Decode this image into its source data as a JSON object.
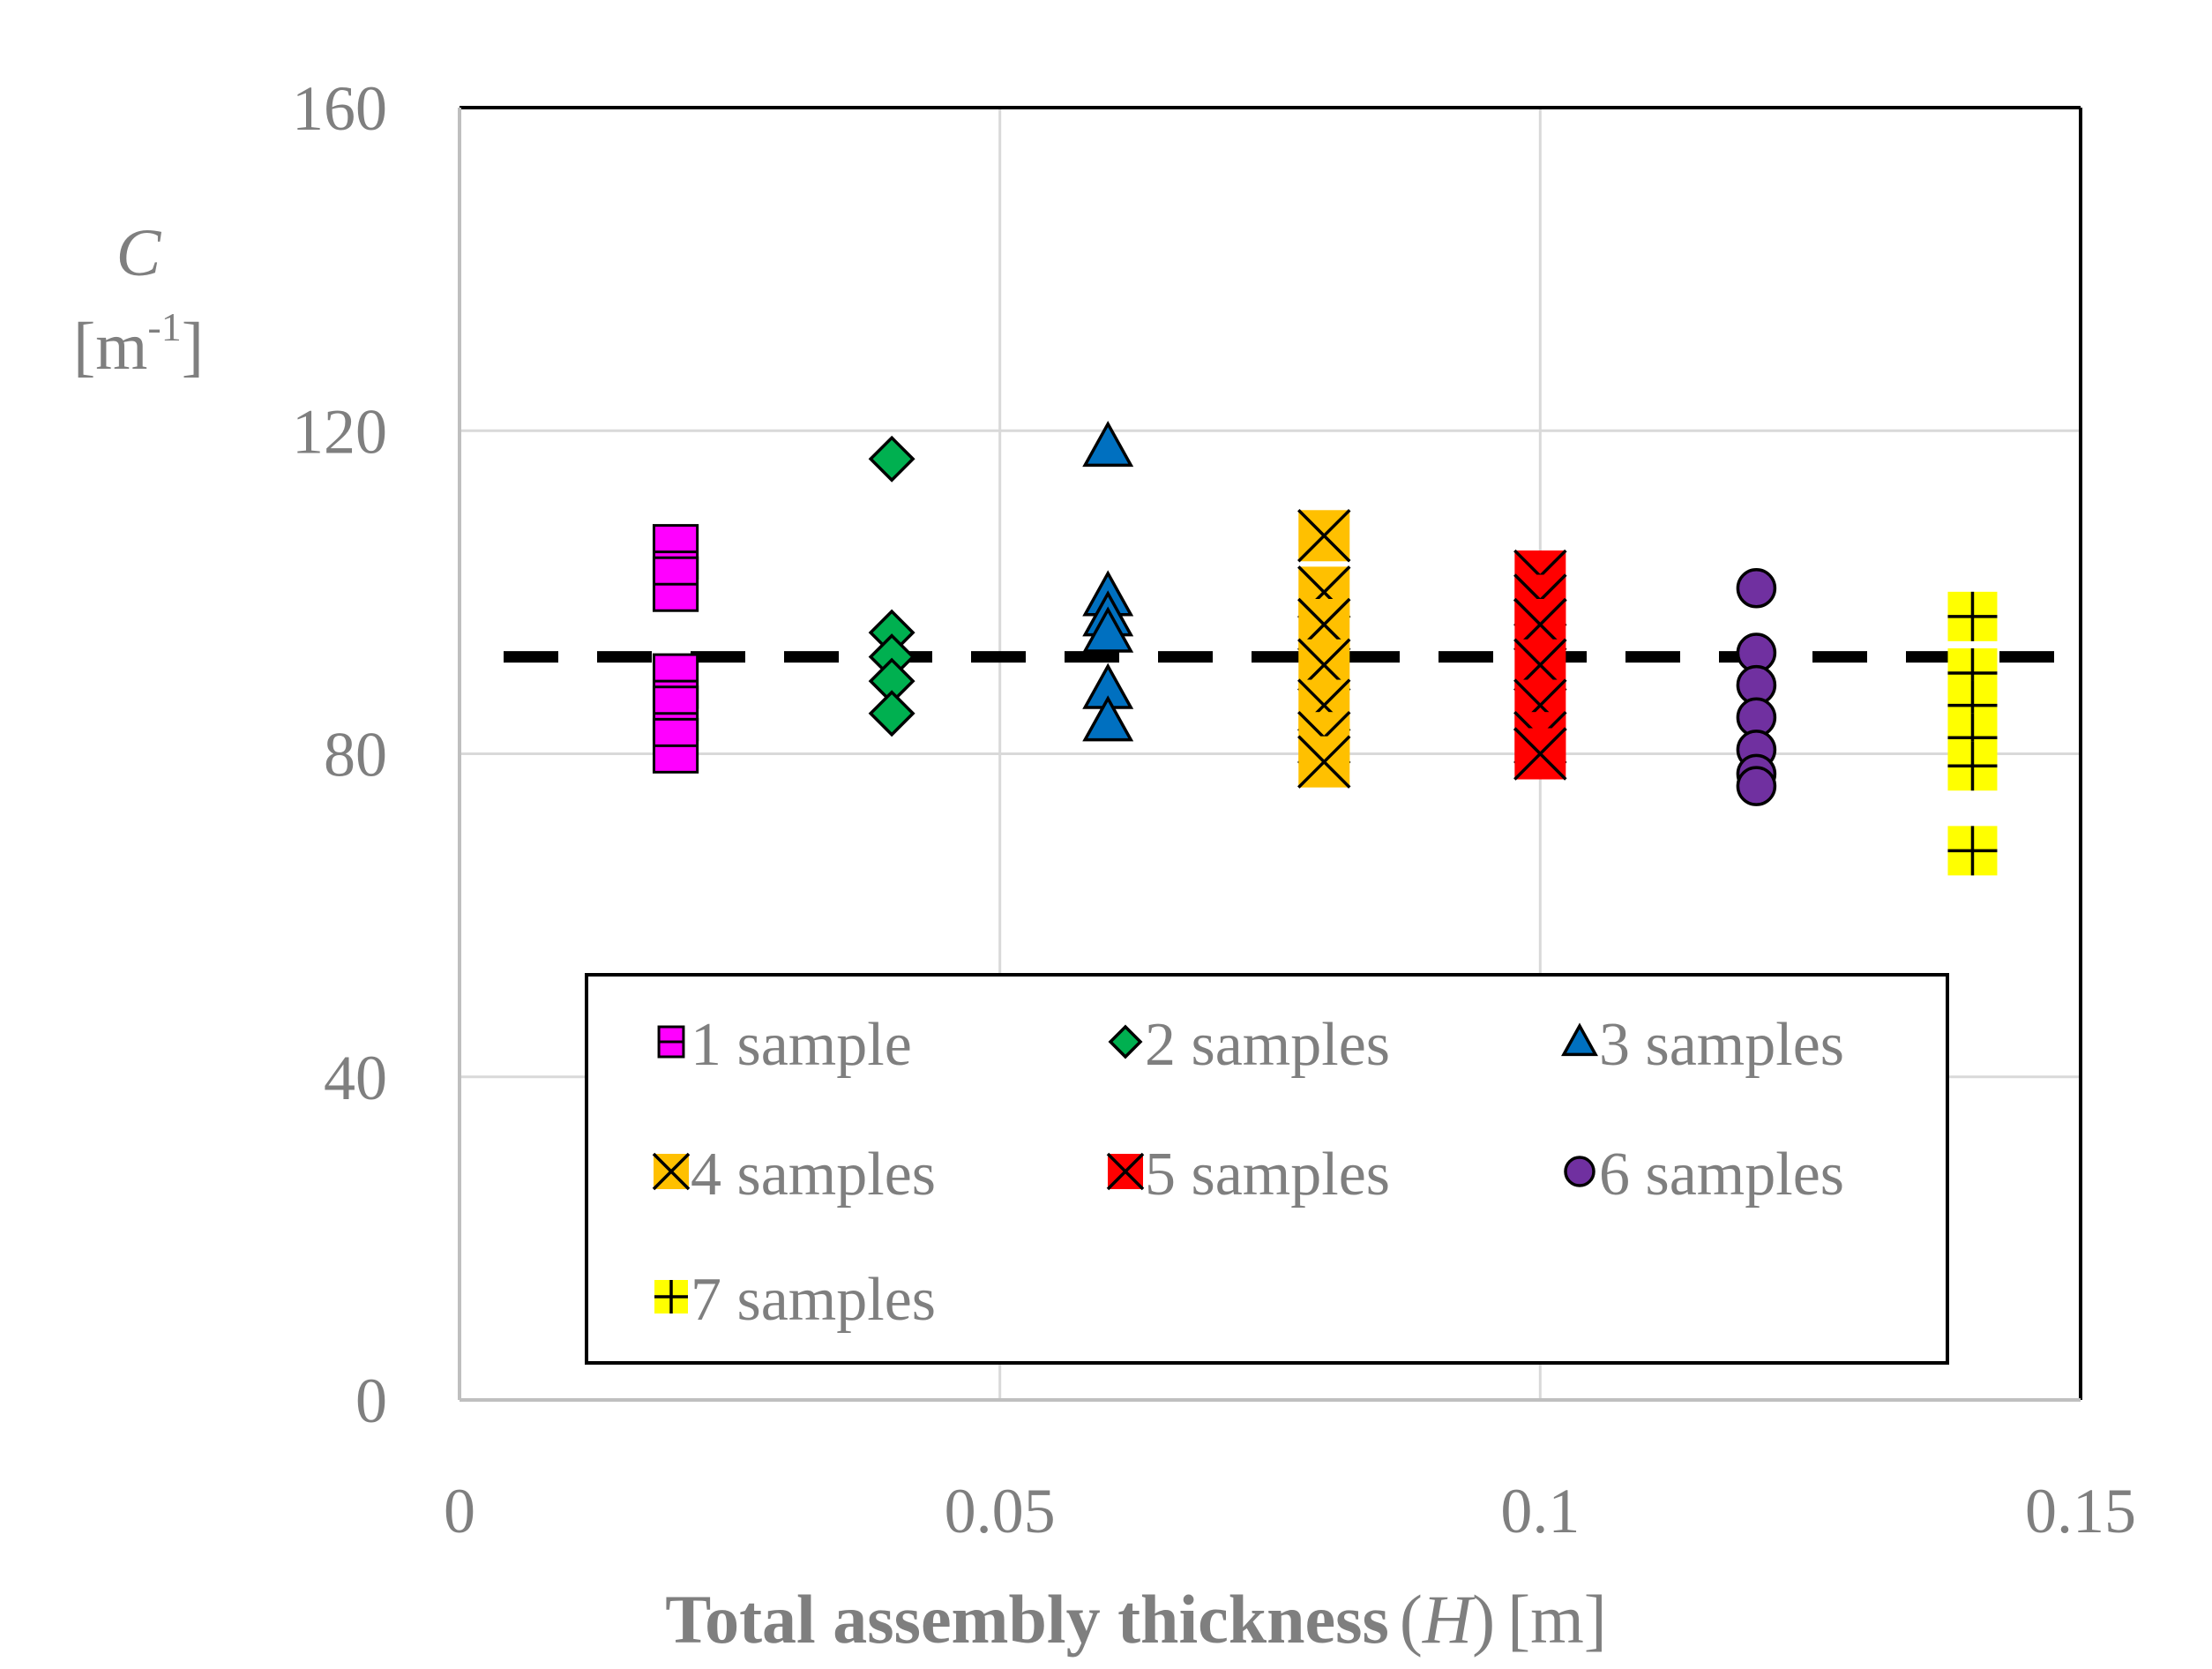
{
  "chart_data": {
    "type": "scatter",
    "title": "",
    "xlabel": {
      "bold": "Total assembly thickness",
      "open": "(",
      "var": "H",
      "close": ")",
      "unit": "[m]"
    },
    "ylabel": {
      "symbol": "C",
      "unit_open": "[m",
      "unit_exp": "-1",
      "unit_close": "]"
    },
    "xlim": [
      0,
      0.15
    ],
    "ylim": [
      0,
      160
    ],
    "xticks": [
      0,
      0.05,
      0.1,
      0.15
    ],
    "xtick_labels": [
      "0",
      "0.05",
      "0.1",
      "0.15"
    ],
    "yticks": [
      0,
      40,
      80,
      120,
      160
    ],
    "ytick_labels": [
      "0",
      "40",
      "80",
      "120",
      "160"
    ],
    "grid": true,
    "reference_line": {
      "y": 92,
      "style": "dashed",
      "color": "#000000"
    },
    "legend_position": "lower-center",
    "series": [
      {
        "name": "1 sample",
        "marker": "square-dash",
        "color": "#ff00ff",
        "x": 0.02,
        "values": [
          105,
          101,
          89,
          85,
          81
        ]
      },
      {
        "name": "2 samples",
        "marker": "diamond",
        "color": "#00b050",
        "x": 0.04,
        "values": [
          116.5,
          95,
          92,
          89,
          85
        ]
      },
      {
        "name": "3 samples",
        "marker": "triangle",
        "color": "#0070c0",
        "x": 0.06,
        "values": [
          118,
          99.5,
          97,
          95,
          88,
          84
        ]
      },
      {
        "name": "4 samples",
        "marker": "square-x",
        "color": "#ffc000",
        "x": 0.08,
        "values": [
          107,
          100,
          96,
          91,
          86,
          82,
          79
        ]
      },
      {
        "name": "5 samples",
        "marker": "square-x",
        "color": "#ff0000",
        "x": 0.1,
        "values": [
          102,
          99,
          96,
          91,
          86,
          82,
          80
        ]
      },
      {
        "name": "6 samples",
        "marker": "circle",
        "color": "#7030a0",
        "x": 0.12,
        "values": [
          100.5,
          92.5,
          88.5,
          84.5,
          80.5,
          77.5,
          76
        ]
      },
      {
        "name": "7 samples",
        "marker": "square-plus",
        "color": "#ffff00",
        "x": 0.14,
        "values": [
          97,
          90,
          86,
          82,
          78.5,
          68
        ]
      }
    ]
  }
}
